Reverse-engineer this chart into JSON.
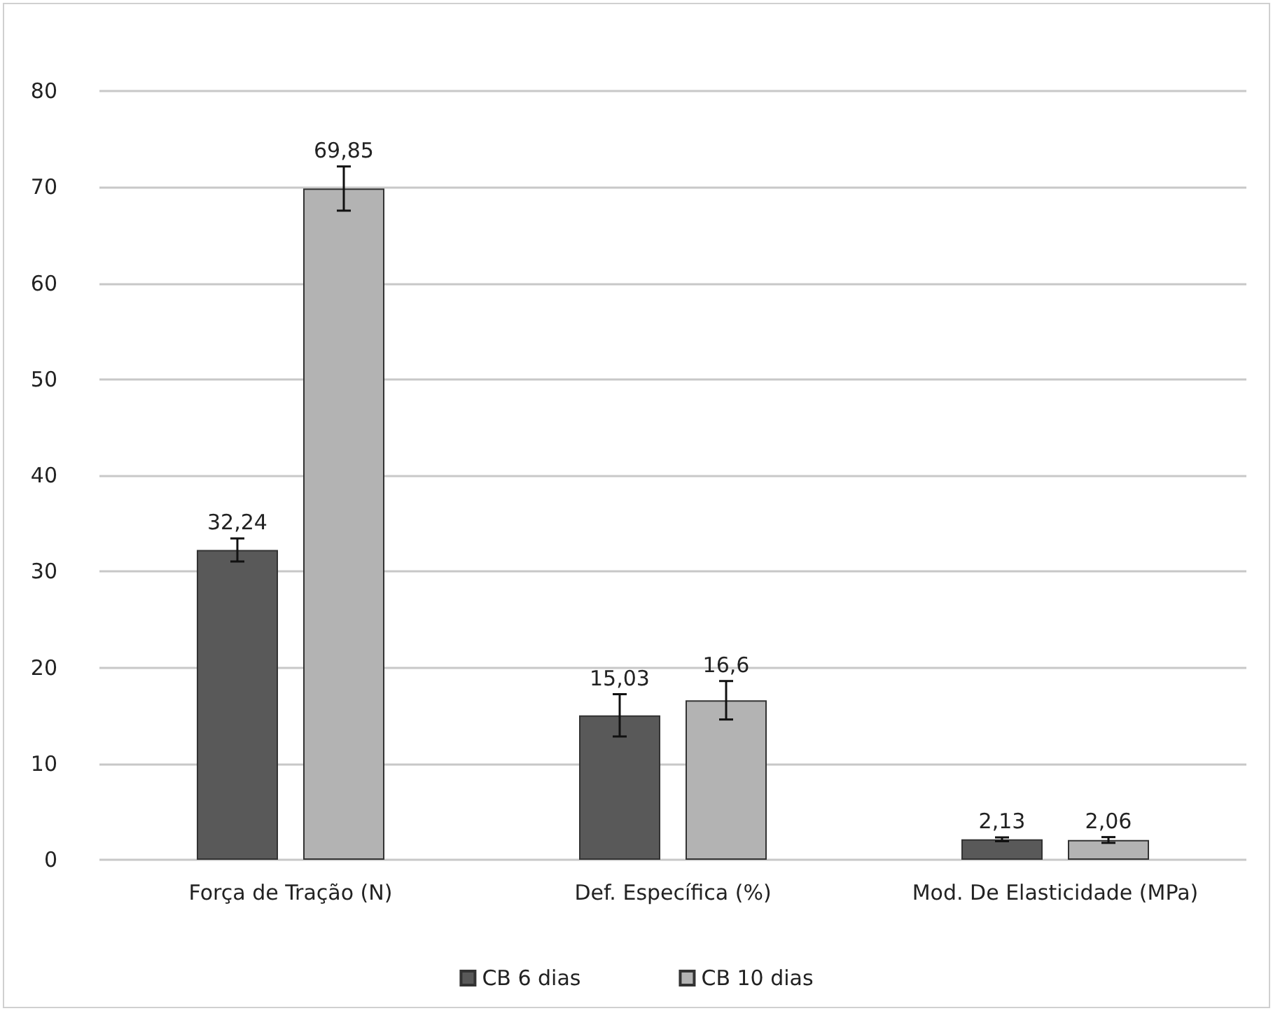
{
  "chart_data": {
    "type": "bar",
    "categories": [
      "Força de Tração (N)",
      "Def. Específica (%)",
      "Mod. De Elasticidade (MPa)"
    ],
    "series": [
      {
        "name": "CB 6 dias",
        "color": "#595959",
        "values": [
          32.24,
          15.03,
          2.13
        ],
        "errors": [
          1.2,
          2.2,
          0.2
        ],
        "value_labels": [
          "32,24",
          "15,03",
          "2,13"
        ]
      },
      {
        "name": "CB 10 dias",
        "color": "#b3b3b3",
        "values": [
          69.85,
          16.6,
          2.06
        ],
        "errors": [
          2.3,
          2,
          0.3
        ],
        "value_labels": [
          "69,85",
          "16,6",
          "2,06"
        ]
      }
    ],
    "ylim": [
      0,
      80
    ],
    "yticks": [
      0,
      10,
      20,
      30,
      40,
      50,
      60,
      70,
      80
    ],
    "grid": "y",
    "legend": "bottom"
  }
}
